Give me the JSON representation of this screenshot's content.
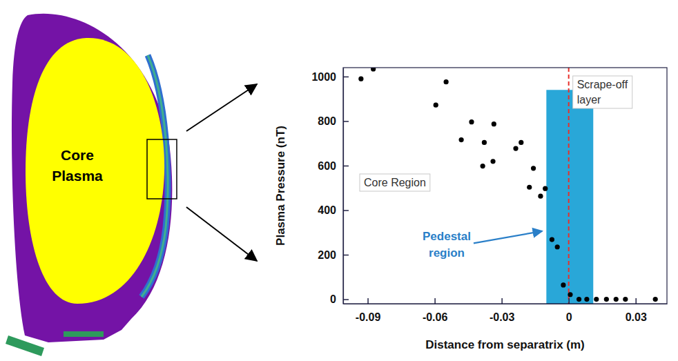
{
  "chart_data": {
    "type": "scatter",
    "x_label": "Distance from separatrix (m)",
    "y_label": "Plasma Pressure (nT)",
    "x": [
      -0.093,
      -0.0875,
      -0.0549,
      -0.0595,
      -0.0435,
      -0.0481,
      -0.0335,
      -0.0378,
      -0.0385,
      -0.0339,
      -0.0237,
      -0.0213,
      -0.0158,
      -0.0176,
      -0.0126,
      -0.0105,
      -0.0075,
      -0.0051,
      -0.0024,
      0.0007,
      0.0046,
      0.0081,
      0.0124,
      0.0169,
      0.0212,
      0.0254,
      0.0388
    ],
    "values": [
      990,
      1034,
      976,
      872,
      796,
      716,
      787,
      704,
      598,
      619,
      677,
      704,
      588,
      503,
      463,
      497,
      268,
      235,
      64,
      21,
      0,
      0,
      0,
      0,
      0,
      0,
      0
    ],
    "color": "#000000",
    "marker": "circle",
    "xlim": [
      -0.101,
      0.044
    ],
    "ylim": [
      -20,
      1040
    ],
    "xticks": [
      -0.09,
      -0.06,
      -0.03,
      0,
      0.03
    ],
    "yticks": [
      0,
      200,
      400,
      600,
      800,
      1000
    ],
    "grid": false,
    "separatrix": 0,
    "pedestal_band": {
      "x": [
        -0.01,
        0.011
      ],
      "top": 940
    },
    "annotations": [
      "Core Region",
      "Scrape-off layer",
      "Pedestal region"
    ]
  },
  "diagram": {
    "label": "Core Plasma"
  }
}
